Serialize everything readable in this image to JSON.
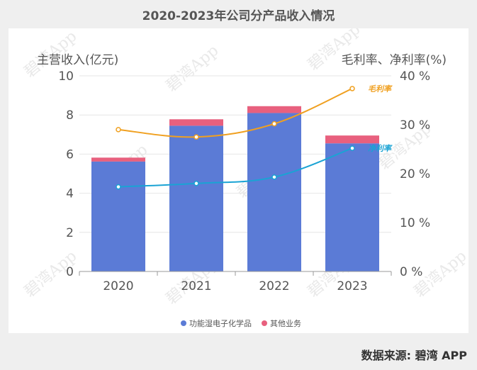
{
  "title": "2020-2023年公司分产品收入情况",
  "source": "数据来源: 碧湾 APP",
  "watermark": "碧湾App",
  "chart_data": {
    "type": "bar",
    "stacked": true,
    "categories": [
      "2020",
      "2021",
      "2022",
      "2023"
    ],
    "series": [
      {
        "name": "功能湿电子化学品",
        "values": [
          5.62,
          7.45,
          8.1,
          6.55
        ],
        "color": "#5b7bd6"
      },
      {
        "name": "其他业务",
        "values": [
          0.2,
          0.33,
          0.35,
          0.4
        ],
        "color": "#e8607e"
      }
    ],
    "lines": [
      {
        "name": "毛利率",
        "values": [
          29,
          27.5,
          30.2,
          37.4
        ],
        "color": "#f0a020",
        "axis": "right"
      },
      {
        "name": "净利率",
        "values": [
          17.3,
          18,
          19.3,
          25.2
        ],
        "color": "#1aa3d4",
        "axis": "right"
      }
    ],
    "ylabel": "主营收入(亿元)",
    "ylabel_right": "毛利率、净利率(%)",
    "ylim": [
      0,
      10
    ],
    "ylim_right": [
      0,
      40
    ],
    "yticks": [
      "0",
      "2",
      "4",
      "6",
      "8",
      "10"
    ],
    "yticks_right": [
      "0 %",
      "10 %",
      "20 %",
      "30 %",
      "40 %"
    ],
    "grid": true,
    "legend_position": "bottom"
  }
}
